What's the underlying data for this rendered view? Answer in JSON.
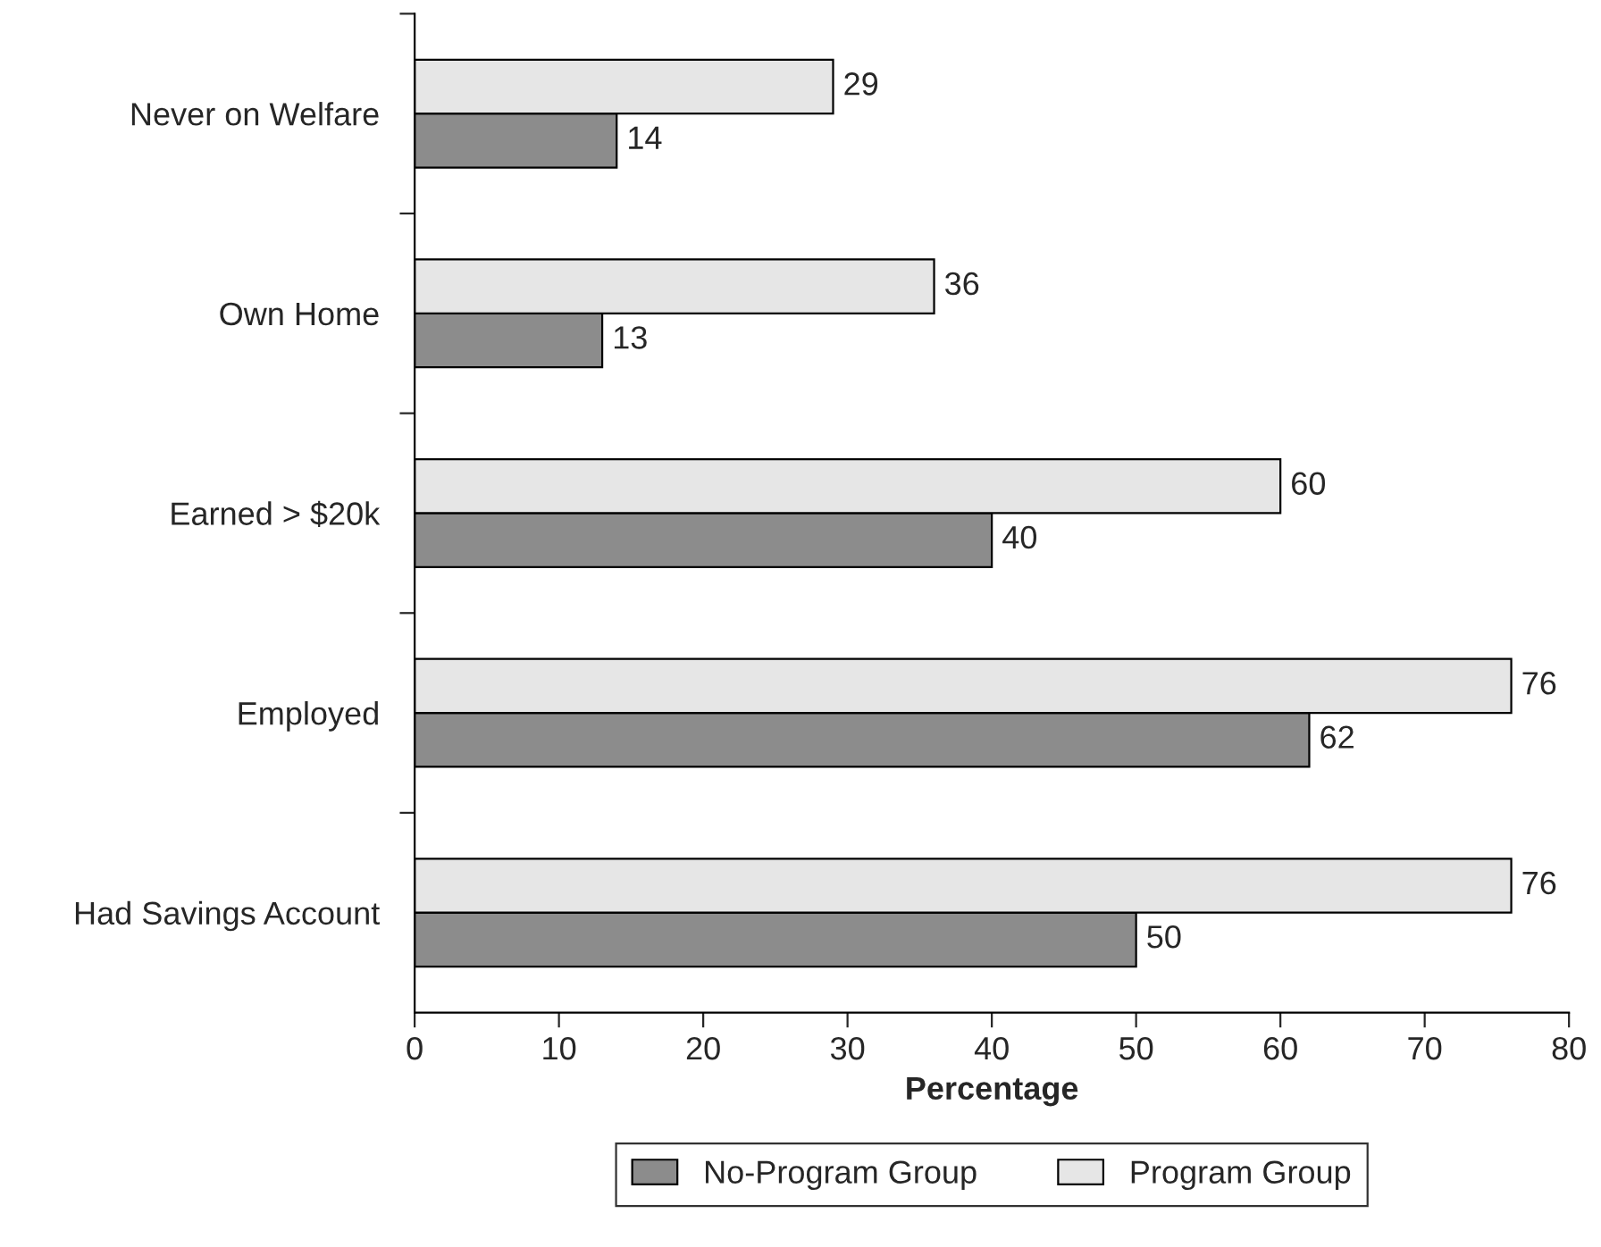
{
  "chart_data": {
    "type": "bar",
    "orientation": "horizontal",
    "xlabel": "Percentage",
    "categories": [
      "Never on Welfare",
      "Own Home",
      "Earned > $20k",
      "Employed",
      "Had Savings Account"
    ],
    "series": [
      {
        "name": "No-Program Group",
        "color": "#8c8c8c",
        "values": [
          14,
          13,
          40,
          62,
          50
        ]
      },
      {
        "name": "Program Group",
        "color": "#e6e6e6",
        "values": [
          29,
          36,
          60,
          76,
          76
        ]
      }
    ],
    "xlim": [
      0,
      80
    ],
    "xticks": [
      0,
      10,
      20,
      30,
      40,
      50,
      60,
      70,
      80
    ],
    "data_labels": true,
    "grid": false,
    "legend": "bottom"
  }
}
